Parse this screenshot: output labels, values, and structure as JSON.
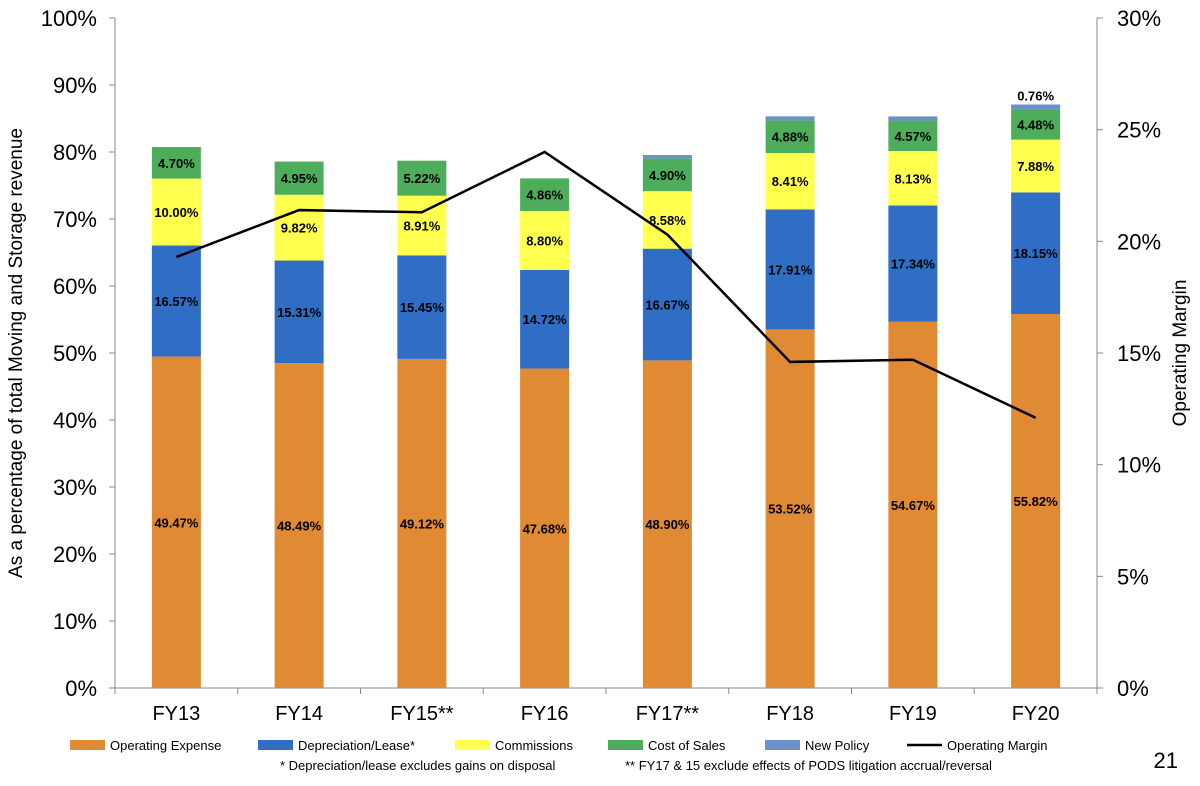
{
  "chart_data": {
    "type": "bar",
    "stacked": true,
    "categories": [
      "FY13",
      "FY14",
      "FY15**",
      "FY16",
      "FY17**",
      "FY18",
      "FY19",
      "FY20"
    ],
    "series": [
      {
        "name": "Operating Expense",
        "color": "#E08A33",
        "values": [
          49.47,
          48.49,
          49.12,
          47.68,
          48.9,
          53.52,
          54.67,
          55.82
        ],
        "labels": [
          "49.47%",
          "48.49%",
          "49.12%",
          "47.68%",
          "48.90%",
          "53.52%",
          "54.67%",
          "55.82%"
        ]
      },
      {
        "name": "Depreciation/Lease*",
        "color": "#2F6EC4",
        "values": [
          16.57,
          15.31,
          15.45,
          14.72,
          16.67,
          17.91,
          17.34,
          18.15
        ],
        "labels": [
          "16.57%",
          "15.31%",
          "15.45%",
          "14.72%",
          "16.67%",
          "17.91%",
          "17.34%",
          "18.15%"
        ]
      },
      {
        "name": "Commissions",
        "color": "#FFFF4D",
        "values": [
          10.0,
          9.82,
          8.91,
          8.8,
          8.58,
          8.41,
          8.13,
          7.88
        ],
        "labels": [
          "10.00%",
          "9.82%",
          "8.91%",
          "8.80%",
          "8.58%",
          "8.41%",
          "8.13%",
          "7.88%"
        ]
      },
      {
        "name": "Cost of Sales",
        "color": "#4DAD5B",
        "values": [
          4.7,
          4.95,
          5.22,
          4.86,
          4.9,
          4.88,
          4.57,
          4.48
        ],
        "labels": [
          "4.70%",
          "4.95%",
          "5.22%",
          "4.86%",
          "4.90%",
          "4.88%",
          "4.57%",
          "4.48%"
        ]
      },
      {
        "name": "New Policy",
        "color": "#6A8FCB",
        "values": [
          0,
          0,
          0,
          0,
          0.5,
          0.6,
          0.6,
          0.76
        ],
        "labels": [
          "",
          "",
          "",
          "",
          "",
          "",
          "",
          "0.76%"
        ]
      }
    ],
    "line_series": {
      "name": "Operating Margin",
      "axis": "right",
      "color": "#000000",
      "values": [
        19.3,
        21.4,
        21.3,
        24.0,
        20.3,
        14.6,
        14.7,
        12.1
      ]
    },
    "ylabel": "As a percentage of total Moving and Storage revenue",
    "y2label": "Operating Margin",
    "ylim": [
      0,
      100
    ],
    "y2lim": [
      0,
      30
    ],
    "yticks": [
      "0%",
      "10%",
      "20%",
      "30%",
      "40%",
      "50%",
      "60%",
      "70%",
      "80%",
      "90%",
      "100%"
    ],
    "y2ticks": [
      "0%",
      "5%",
      "10%",
      "15%",
      "20%",
      "25%",
      "30%"
    ],
    "legend": [
      "Operating Expense",
      "Depreciation/Lease*",
      "Commissions",
      "Cost of Sales",
      "New Policy",
      "Operating Margin"
    ],
    "legend_position": "bottom",
    "footnotes": [
      "* Depreciation/lease excludes gains on disposal",
      "** FY17 & 15 exclude effects of PODS litigation accrual/reversal"
    ]
  },
  "page_number": "21"
}
